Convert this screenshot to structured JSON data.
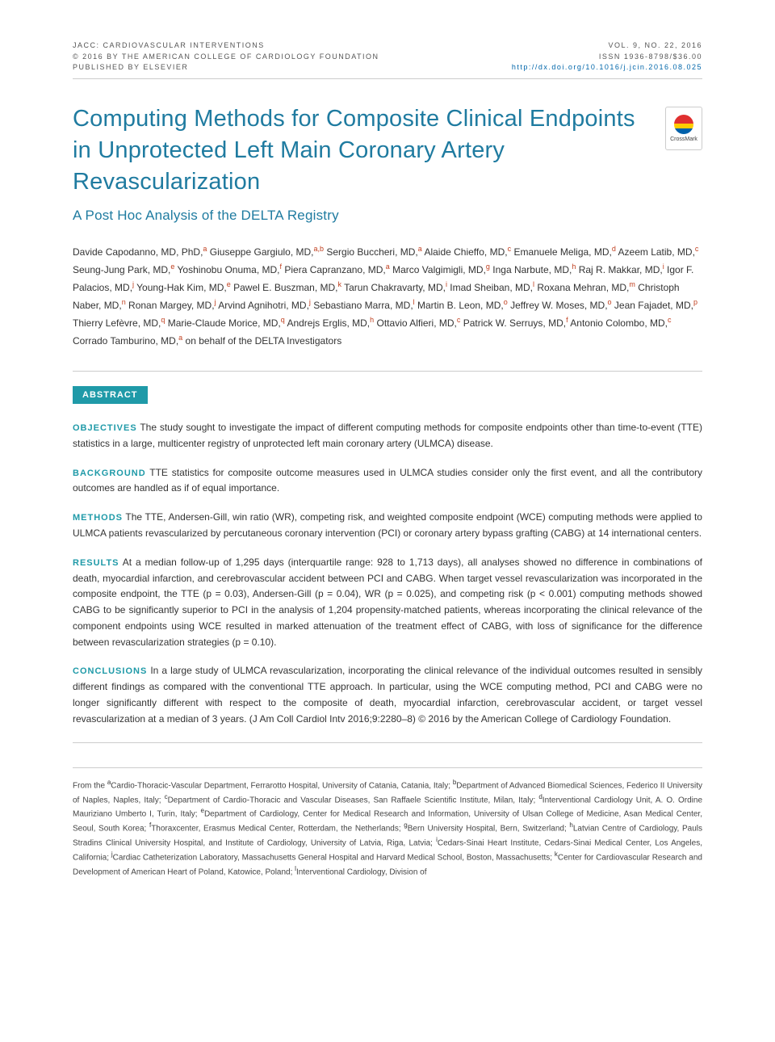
{
  "colors": {
    "title": "#1f7ba0",
    "badge": "#1f9aa8",
    "sup": "#c04020",
    "doi": "#0066aa",
    "text": "#333333",
    "rule": "#cccccc",
    "bg": "#ffffff"
  },
  "typography": {
    "title_fontsize": 29,
    "subtitle_fontsize": 17,
    "authors_fontsize": 12,
    "abstract_fontsize": 12,
    "header_fontsize": 9,
    "affiliations_fontsize": 10
  },
  "header": {
    "journal": "JACC: CARDIOVASCULAR INTERVENTIONS",
    "copyright": "© 2016 BY THE AMERICAN COLLEGE OF CARDIOLOGY FOUNDATION",
    "publisher": "PUBLISHED BY ELSEVIER",
    "volume": "VOL. 9, NO. 22, 2016",
    "issn": "ISSN 1936-8798/$36.00",
    "doi": "http://dx.doi.org/10.1016/j.jcin.2016.08.025"
  },
  "crossmark": {
    "label": "CrossMark"
  },
  "title": "Computing Methods for Composite Clinical Endpoints in Unprotected Left Main Coronary Artery Revascularization",
  "subtitle": "A Post Hoc Analysis of the DELTA Registry",
  "authors": [
    {
      "name": "Davide Capodanno, MD, PhD,",
      "aff": "a"
    },
    {
      "name": "Giuseppe Gargiulo, MD,",
      "aff": "a,b"
    },
    {
      "name": "Sergio Buccheri, MD,",
      "aff": "a"
    },
    {
      "name": "Alaide Chieffo, MD,",
      "aff": "c"
    },
    {
      "name": "Emanuele Meliga, MD,",
      "aff": "d"
    },
    {
      "name": "Azeem Latib, MD,",
      "aff": "c"
    },
    {
      "name": "Seung-Jung Park, MD,",
      "aff": "e"
    },
    {
      "name": "Yoshinobu Onuma, MD,",
      "aff": "f"
    },
    {
      "name": "Piera Capranzano, MD,",
      "aff": "a"
    },
    {
      "name": "Marco Valgimigli, MD,",
      "aff": "g"
    },
    {
      "name": "Inga Narbute, MD,",
      "aff": "h"
    },
    {
      "name": "Raj R. Makkar, MD,",
      "aff": "i"
    },
    {
      "name": "Igor F. Palacios, MD,",
      "aff": "j"
    },
    {
      "name": "Young-Hak Kim, MD,",
      "aff": "e"
    },
    {
      "name": "Pawel E. Buszman, MD,",
      "aff": "k"
    },
    {
      "name": "Tarun Chakravarty, MD,",
      "aff": "i"
    },
    {
      "name": "Imad Sheiban, MD,",
      "aff": "l"
    },
    {
      "name": "Roxana Mehran, MD,",
      "aff": "m"
    },
    {
      "name": "Christoph Naber, MD,",
      "aff": "n"
    },
    {
      "name": "Ronan Margey, MD,",
      "aff": "j"
    },
    {
      "name": "Arvind Agnihotri, MD,",
      "aff": "j"
    },
    {
      "name": "Sebastiano Marra, MD,",
      "aff": "l"
    },
    {
      "name": "Martin B. Leon, MD,",
      "aff": "o"
    },
    {
      "name": "Jeffrey W. Moses, MD,",
      "aff": "o"
    },
    {
      "name": "Jean Fajadet, MD,",
      "aff": "p"
    },
    {
      "name": "Thierry Lefèvre, MD,",
      "aff": "q"
    },
    {
      "name": "Marie-Claude Morice, MD,",
      "aff": "q"
    },
    {
      "name": "Andrejs Erglis, MD,",
      "aff": "h"
    },
    {
      "name": "Ottavio Alfieri, MD,",
      "aff": "c"
    },
    {
      "name": "Patrick W. Serruys, MD,",
      "aff": "f"
    },
    {
      "name": "Antonio Colombo, MD,",
      "aff": "c"
    },
    {
      "name": "Corrado Tamburino, MD,",
      "aff": "a"
    }
  ],
  "authors_tail": "on behalf of the DELTA Investigators",
  "abstract": {
    "badge": "ABSTRACT",
    "objectives": {
      "head": "OBJECTIVES",
      "text": "The study sought to investigate the impact of different computing methods for composite endpoints other than time-to-event (TTE) statistics in a large, multicenter registry of unprotected left main coronary artery (ULMCA) disease."
    },
    "background": {
      "head": "BACKGROUND",
      "text": "TTE statistics for composite outcome measures used in ULMCA studies consider only the first event, and all the contributory outcomes are handled as if of equal importance."
    },
    "methods": {
      "head": "METHODS",
      "text": "The TTE, Andersen-Gill, win ratio (WR), competing risk, and weighted composite endpoint (WCE) computing methods were applied to ULMCA patients revascularized by percutaneous coronary intervention (PCI) or coronary artery bypass grafting (CABG) at 14 international centers."
    },
    "results": {
      "head": "RESULTS",
      "text": "At a median follow-up of 1,295 days (interquartile range: 928 to 1,713 days), all analyses showed no difference in combinations of death, myocardial infarction, and cerebrovascular accident between PCI and CABG. When target vessel revascularization was incorporated in the composite endpoint, the TTE (p = 0.03), Andersen-Gill (p = 0.04), WR (p = 0.025), and competing risk (p < 0.001) computing methods showed CABG to be significantly superior to PCI in the analysis of 1,204 propensity-matched patients, whereas incorporating the clinical relevance of the component endpoints using WCE resulted in marked attenuation of the treatment effect of CABG, with loss of significance for the difference between revascularization strategies (p = 0.10)."
    },
    "conclusions": {
      "head": "CONCLUSIONS",
      "text": "In a large study of ULMCA revascularization, incorporating the clinical relevance of the individual outcomes resulted in sensibly different findings as compared with the conventional TTE approach. In particular, using the WCE computing method, PCI and CABG were no longer significantly different with respect to the composite of death, myocardial infarction, cerebrovascular accident, or target vessel revascularization at a median of 3 years. (J Am Coll Cardiol Intv 2016;9:2280–8) © 2016 by the American College of Cardiology Foundation."
    }
  },
  "affiliations_prefix": "From the ",
  "affiliations": [
    {
      "key": "a",
      "text": "Cardio-Thoracic-Vascular Department, Ferrarotto Hospital, University of Catania, Catania, Italy; "
    },
    {
      "key": "b",
      "text": "Department of Advanced Biomedical Sciences, Federico II University of Naples, Naples, Italy; "
    },
    {
      "key": "c",
      "text": "Department of Cardio-Thoracic and Vascular Diseases, San Raffaele Scientific Institute, Milan, Italy; "
    },
    {
      "key": "d",
      "text": "Interventional Cardiology Unit, A. O. Ordine Mauriziano Umberto I, Turin, Italy; "
    },
    {
      "key": "e",
      "text": "Department of Cardiology, Center for Medical Research and Information, University of Ulsan College of Medicine, Asan Medical Center, Seoul, South Korea; "
    },
    {
      "key": "f",
      "text": "Thoraxcenter, Erasmus Medical Center, Rotterdam, the Netherlands; "
    },
    {
      "key": "g",
      "text": "Bern University Hospital, Bern, Switzerland; "
    },
    {
      "key": "h",
      "text": "Latvian Centre of Cardiology, Pauls Stradins Clinical University Hospital, and Institute of Cardiology, University of Latvia, Riga, Latvia; "
    },
    {
      "key": "i",
      "text": "Cedars-Sinai Heart Institute, Cedars-Sinai Medical Center, Los Angeles, California; "
    },
    {
      "key": "j",
      "text": "Cardiac Catheterization Laboratory, Massachusetts General Hospital and Harvard Medical School, Boston, Massachusetts; "
    },
    {
      "key": "k",
      "text": "Center for Cardiovascular Research and Development of American Heart of Poland, Katowice, Poland; "
    },
    {
      "key": "l",
      "text": "Interventional Cardiology, Division of"
    }
  ]
}
